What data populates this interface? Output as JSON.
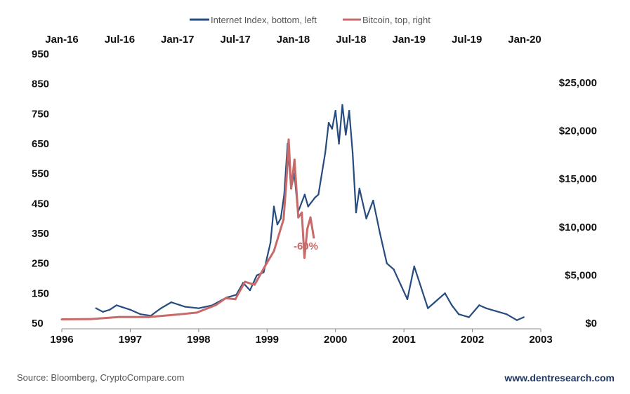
{
  "chart_data": {
    "type": "line",
    "legend": [
      {
        "label": "Internet Index, bottom, left",
        "color": "#264C7F"
      },
      {
        "label": "Bitcoin, top, right",
        "color": "#C86A6A"
      }
    ],
    "legend_position": "top-center",
    "grid": false,
    "bottom_axis": {
      "ticks": [
        "1996",
        "1997",
        "1998",
        "1999",
        "2000",
        "2001",
        "2002",
        "2003"
      ],
      "range": [
        1996,
        2003
      ]
    },
    "top_axis": {
      "ticks": [
        "Jan-16",
        "Jul-16",
        "Jan-17",
        "Jul-17",
        "Jan-18",
        "Jul-18",
        "Jan-19",
        "Jul-19",
        "Jan-20"
      ],
      "range": [
        "2016-01",
        "2020-01"
      ]
    },
    "left_axis": {
      "ticks": [
        "950",
        "850",
        "750",
        "650",
        "550",
        "450",
        "350",
        "250",
        "150",
        "50"
      ],
      "range": [
        50,
        950
      ]
    },
    "right_axis": {
      "ticks": [
        "$25,000",
        "$20,000",
        "$15,000",
        "$10,000",
        "$5,000",
        "$0"
      ],
      "range": [
        0,
        25000
      ]
    },
    "series": [
      {
        "name": "Internet Index, bottom, left",
        "axis": "bottom-left",
        "x": [
          1996.5,
          1996.6,
          1996.7,
          1996.8,
          1997.0,
          1997.15,
          1997.3,
          1997.45,
          1997.6,
          1997.8,
          1998.0,
          1998.2,
          1998.4,
          1998.55,
          1998.65,
          1998.75,
          1998.85,
          1998.95,
          1999.0,
          1999.05,
          1999.1,
          1999.15,
          1999.2,
          1999.25,
          1999.3,
          1999.35,
          1999.4,
          1999.45,
          1999.55,
          1999.6,
          1999.7,
          1999.75,
          1999.85,
          1999.9,
          1999.95,
          2000.0,
          2000.05,
          2000.1,
          2000.15,
          2000.2,
          2000.25,
          2000.3,
          2000.35,
          2000.45,
          2000.55,
          2000.65,
          2000.75,
          2000.85,
          2000.95,
          2001.05,
          2001.15,
          2001.25,
          2001.35,
          2001.45,
          2001.6,
          2001.7,
          2001.8,
          2001.95,
          2002.1,
          2002.2,
          2002.35,
          2002.5,
          2002.65,
          2002.75
        ],
        "values": [
          100,
          88,
          95,
          110,
          95,
          80,
          75,
          100,
          120,
          105,
          100,
          110,
          135,
          145,
          185,
          160,
          210,
          220,
          270,
          320,
          440,
          380,
          400,
          480,
          650,
          500,
          550,
          420,
          480,
          440,
          470,
          480,
          620,
          720,
          700,
          760,
          650,
          780,
          680,
          760,
          620,
          420,
          500,
          400,
          460,
          350,
          250,
          230,
          180,
          130,
          240,
          170,
          100,
          120,
          150,
          110,
          80,
          70,
          110,
          100,
          90,
          80,
          60,
          70
        ]
      },
      {
        "name": "Bitcoin, top, right",
        "axis": "top-right",
        "x": [
          "2016-01",
          "2016-04",
          "2016-07",
          "2016-10",
          "2017-01",
          "2017-03",
          "2017-05",
          "2017-06",
          "2017-07",
          "2017-08",
          "2017-09",
          "2017-10",
          "2017-11",
          "2017-12-01",
          "2017-12-10",
          "2017-12-17",
          "2017-12-25",
          "2018-01-05",
          "2018-01-17",
          "2018-01-28",
          "2018-02-06",
          "2018-02-15",
          "2018-02-25",
          "2018-03-05"
        ],
        "values": [
          400,
          430,
          650,
          640,
          900,
          1100,
          1900,
          2600,
          2500,
          4300,
          4000,
          5800,
          7500,
          10800,
          14800,
          19100,
          14000,
          17000,
          11000,
          11500,
          6800,
          9800,
          11000,
          8900
        ]
      }
    ],
    "annotations": [
      {
        "text": "-60%",
        "color": "#C86A6A"
      }
    ]
  },
  "footer": {
    "source": "Source: Bloomberg, CryptoCompare.com",
    "url": "www.dentresearch.com",
    "url_color": "#1F3864"
  }
}
